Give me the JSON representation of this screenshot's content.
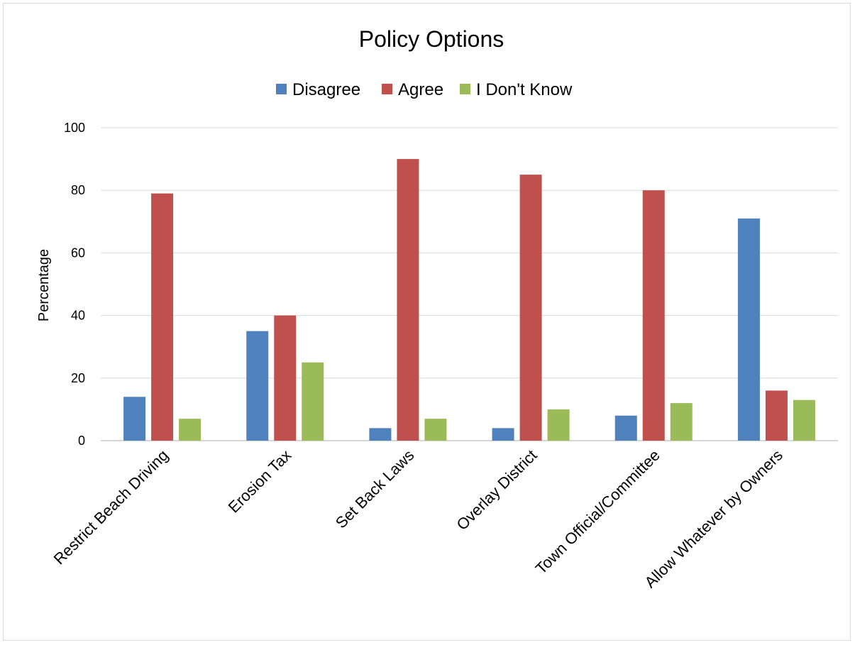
{
  "chart_data": {
    "type": "bar",
    "title": "Policy Options",
    "xlabel": "",
    "ylabel": "Percentage",
    "ylim": [
      0,
      100
    ],
    "yticks": [
      0,
      20,
      40,
      60,
      80,
      100
    ],
    "grid": true,
    "legend_position": "top",
    "categories": [
      "Restrict Beach Driving",
      "Erosion Tax",
      "Set Back Laws",
      "Overlay District",
      "Town Official/Committee",
      "Allow Whatever by Owners"
    ],
    "series": [
      {
        "name": "Disagree",
        "color": "#4F81BD",
        "values": [
          14,
          35,
          4,
          4,
          8,
          71
        ]
      },
      {
        "name": "Agree",
        "color": "#C0504D",
        "values": [
          79,
          40,
          90,
          85,
          80,
          16
        ]
      },
      {
        "name": "I Don't Know",
        "color": "#9BBB59",
        "values": [
          7,
          25,
          7,
          10,
          12,
          13
        ]
      }
    ]
  }
}
